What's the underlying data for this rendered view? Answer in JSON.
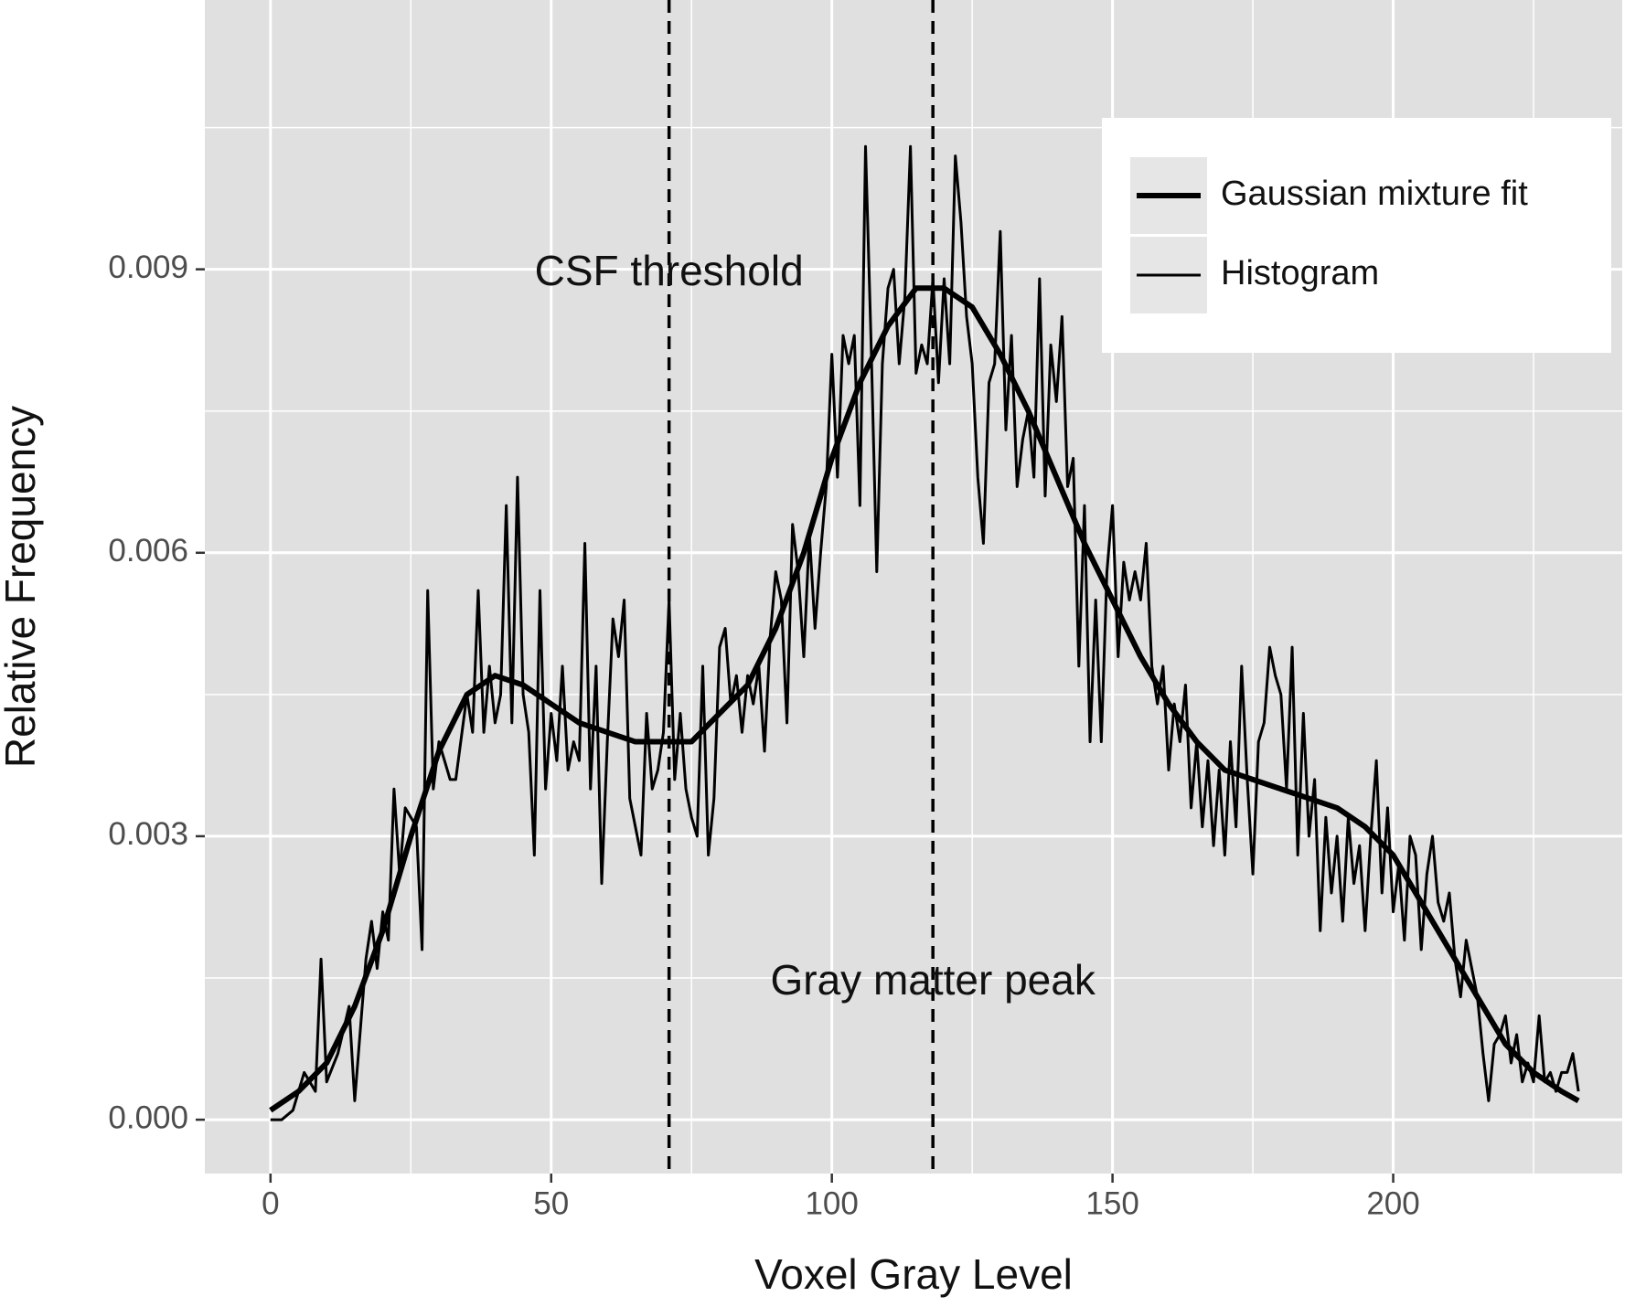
{
  "chart_data": {
    "type": "line",
    "x_label": "Voxel Gray Level",
    "y_label": "Relative Frequency",
    "xlim": [
      -11.7,
      240.8
    ],
    "ylim": [
      -0.00057,
      0.01185
    ],
    "xticks": [
      0,
      50,
      100,
      150,
      200
    ],
    "yticks": [
      {
        "value": 0,
        "label": "0.000"
      },
      {
        "value": 0.003,
        "label": "0.003"
      },
      {
        "value": 0.006,
        "label": "0.006"
      },
      {
        "value": 0.009,
        "label": "0.009"
      }
    ],
    "xminorticks": [
      25,
      75,
      125,
      175,
      225
    ],
    "yminorticks": [
      0.0015,
      0.0045,
      0.0075,
      0.0105
    ],
    "grid": true,
    "background": "#e0e0e0",
    "legend": "top-right",
    "vlines": [
      71,
      118
    ],
    "annotations": [
      "CSF threshold",
      "Gray matter peak"
    ],
    "series": [
      {
        "name": "Gaussian mixture fit",
        "color": "#000000",
        "line_width": 6,
        "x": [
          0,
          5,
          10,
          15,
          20,
          25,
          30,
          35,
          40,
          45,
          50,
          55,
          60,
          65,
          70,
          75,
          80,
          85,
          90,
          95,
          100,
          105,
          110,
          115,
          120,
          125,
          130,
          135,
          140,
          145,
          150,
          155,
          160,
          165,
          170,
          175,
          180,
          185,
          190,
          195,
          200,
          205,
          210,
          215,
          220,
          225,
          230,
          233
        ],
        "values": [
          0.0001,
          0.0003,
          0.0006,
          0.0012,
          0.002,
          0.003,
          0.0039,
          0.0045,
          0.0047,
          0.0046,
          0.0044,
          0.0042,
          0.0041,
          0.004,
          0.004,
          0.004,
          0.0043,
          0.0046,
          0.0052,
          0.006,
          0.007,
          0.0078,
          0.0084,
          0.0088,
          0.0088,
          0.0086,
          0.0081,
          0.0075,
          0.0068,
          0.0061,
          0.0055,
          0.0049,
          0.0044,
          0.004,
          0.0037,
          0.0036,
          0.0035,
          0.0034,
          0.0033,
          0.0031,
          0.0028,
          0.0023,
          0.0018,
          0.0013,
          0.0008,
          0.0005,
          0.0003,
          0.0002
        ]
      },
      {
        "name": "Histogram",
        "color": "#000000",
        "line_width": 3,
        "x": [
          0,
          2,
          4,
          6,
          8,
          9,
          10,
          12,
          14,
          15,
          17,
          18,
          19,
          20,
          21,
          22,
          23,
          24,
          26,
          27,
          28,
          29,
          30,
          32,
          33,
          35,
          36,
          37,
          38,
          39,
          40,
          41,
          42,
          43,
          44,
          45,
          46,
          47,
          48,
          49,
          50,
          51,
          52,
          53,
          54,
          55,
          56,
          57,
          58,
          59,
          60,
          61,
          62,
          63,
          64,
          65,
          66,
          67,
          68,
          69,
          70,
          71,
          72,
          73,
          74,
          75,
          76,
          77,
          78,
          79,
          80,
          81,
          82,
          83,
          84,
          85,
          86,
          87,
          88,
          89,
          90,
          91,
          92,
          93,
          94,
          95,
          96,
          97,
          98,
          99,
          100,
          101,
          102,
          103,
          104,
          105,
          106,
          107,
          108,
          109,
          110,
          111,
          112,
          113,
          114,
          115,
          116,
          117,
          118,
          119,
          120,
          121,
          122,
          123,
          124,
          125,
          126,
          127,
          128,
          129,
          130,
          131,
          132,
          133,
          134,
          135,
          136,
          137,
          138,
          139,
          140,
          141,
          142,
          143,
          144,
          145,
          146,
          147,
          148,
          149,
          150,
          151,
          152,
          153,
          154,
          155,
          156,
          157,
          158,
          159,
          160,
          161,
          162,
          163,
          164,
          165,
          166,
          167,
          168,
          169,
          170,
          171,
          172,
          173,
          174,
          175,
          176,
          177,
          178,
          179,
          180,
          181,
          182,
          183,
          184,
          185,
          186,
          187,
          188,
          189,
          190,
          191,
          192,
          193,
          194,
          195,
          196,
          197,
          198,
          199,
          200,
          201,
          202,
          203,
          204,
          205,
          206,
          207,
          208,
          209,
          210,
          211,
          212,
          213,
          214,
          215,
          216,
          217,
          218,
          219,
          220,
          221,
          222,
          223,
          224,
          225,
          226,
          227,
          228,
          229,
          230,
          231,
          232,
          233
        ],
        "values": [
          0,
          0,
          0.0001,
          0.0005,
          0.0003,
          0.0017,
          0.0004,
          0.0007,
          0.0012,
          0.0002,
          0.0017,
          0.0021,
          0.0016,
          0.0022,
          0.0019,
          0.0035,
          0.0026,
          0.0033,
          0.0031,
          0.0018,
          0.0056,
          0.0035,
          0.004,
          0.0036,
          0.0036,
          0.0045,
          0.0041,
          0.0056,
          0.0041,
          0.0048,
          0.0042,
          0.0045,
          0.0065,
          0.0042,
          0.0068,
          0.0045,
          0.0041,
          0.0028,
          0.0056,
          0.0035,
          0.0043,
          0.0038,
          0.0048,
          0.0037,
          0.004,
          0.0038,
          0.0061,
          0.0035,
          0.0048,
          0.0025,
          0.004,
          0.0053,
          0.0049,
          0.0055,
          0.0034,
          0.0031,
          0.0028,
          0.0043,
          0.0035,
          0.0037,
          0.0041,
          0.0055,
          0.0036,
          0.0043,
          0.0035,
          0.0032,
          0.003,
          0.0048,
          0.0028,
          0.0034,
          0.005,
          0.0052,
          0.0044,
          0.0047,
          0.0041,
          0.0047,
          0.0044,
          0.0048,
          0.0039,
          0.0051,
          0.0058,
          0.0055,
          0.0042,
          0.0063,
          0.0058,
          0.0049,
          0.0062,
          0.0052,
          0.006,
          0.0067,
          0.0081,
          0.0068,
          0.0083,
          0.008,
          0.0083,
          0.0065,
          0.0103,
          0.0082,
          0.0058,
          0.008,
          0.0088,
          0.009,
          0.008,
          0.0087,
          0.0103,
          0.0079,
          0.0082,
          0.008,
          0.0089,
          0.0078,
          0.0089,
          0.008,
          0.0102,
          0.0095,
          0.0085,
          0.008,
          0.0068,
          0.0061,
          0.0078,
          0.008,
          0.0094,
          0.0073,
          0.0083,
          0.0067,
          0.0072,
          0.0075,
          0.0068,
          0.0089,
          0.0066,
          0.0082,
          0.0076,
          0.0085,
          0.0067,
          0.007,
          0.0048,
          0.0065,
          0.004,
          0.0055,
          0.004,
          0.0058,
          0.0065,
          0.0049,
          0.0059,
          0.0055,
          0.0058,
          0.0055,
          0.0061,
          0.0048,
          0.0044,
          0.0048,
          0.0037,
          0.0044,
          0.004,
          0.0046,
          0.0033,
          0.004,
          0.0031,
          0.0038,
          0.0029,
          0.0037,
          0.0028,
          0.004,
          0.0031,
          0.0048,
          0.0036,
          0.0026,
          0.004,
          0.0042,
          0.005,
          0.0047,
          0.0045,
          0.0035,
          0.005,
          0.0028,
          0.0043,
          0.003,
          0.0036,
          0.002,
          0.0032,
          0.0024,
          0.003,
          0.0021,
          0.0032,
          0.0025,
          0.0029,
          0.002,
          0.003,
          0.0038,
          0.0024,
          0.0033,
          0.0022,
          0.0027,
          0.0019,
          0.003,
          0.0028,
          0.0018,
          0.0026,
          0.003,
          0.0023,
          0.0021,
          0.0024,
          0.0017,
          0.0013,
          0.0019,
          0.0016,
          0.0013,
          0.0007,
          0.0002,
          0.0008,
          0.0009,
          0.0011,
          0.0006,
          0.0009,
          0.0004,
          0.0006,
          0.0004,
          0.0011,
          0.0004,
          0.0005,
          0.0003,
          0.0005,
          0.0005,
          0.0007,
          0.0003
        ]
      }
    ]
  }
}
